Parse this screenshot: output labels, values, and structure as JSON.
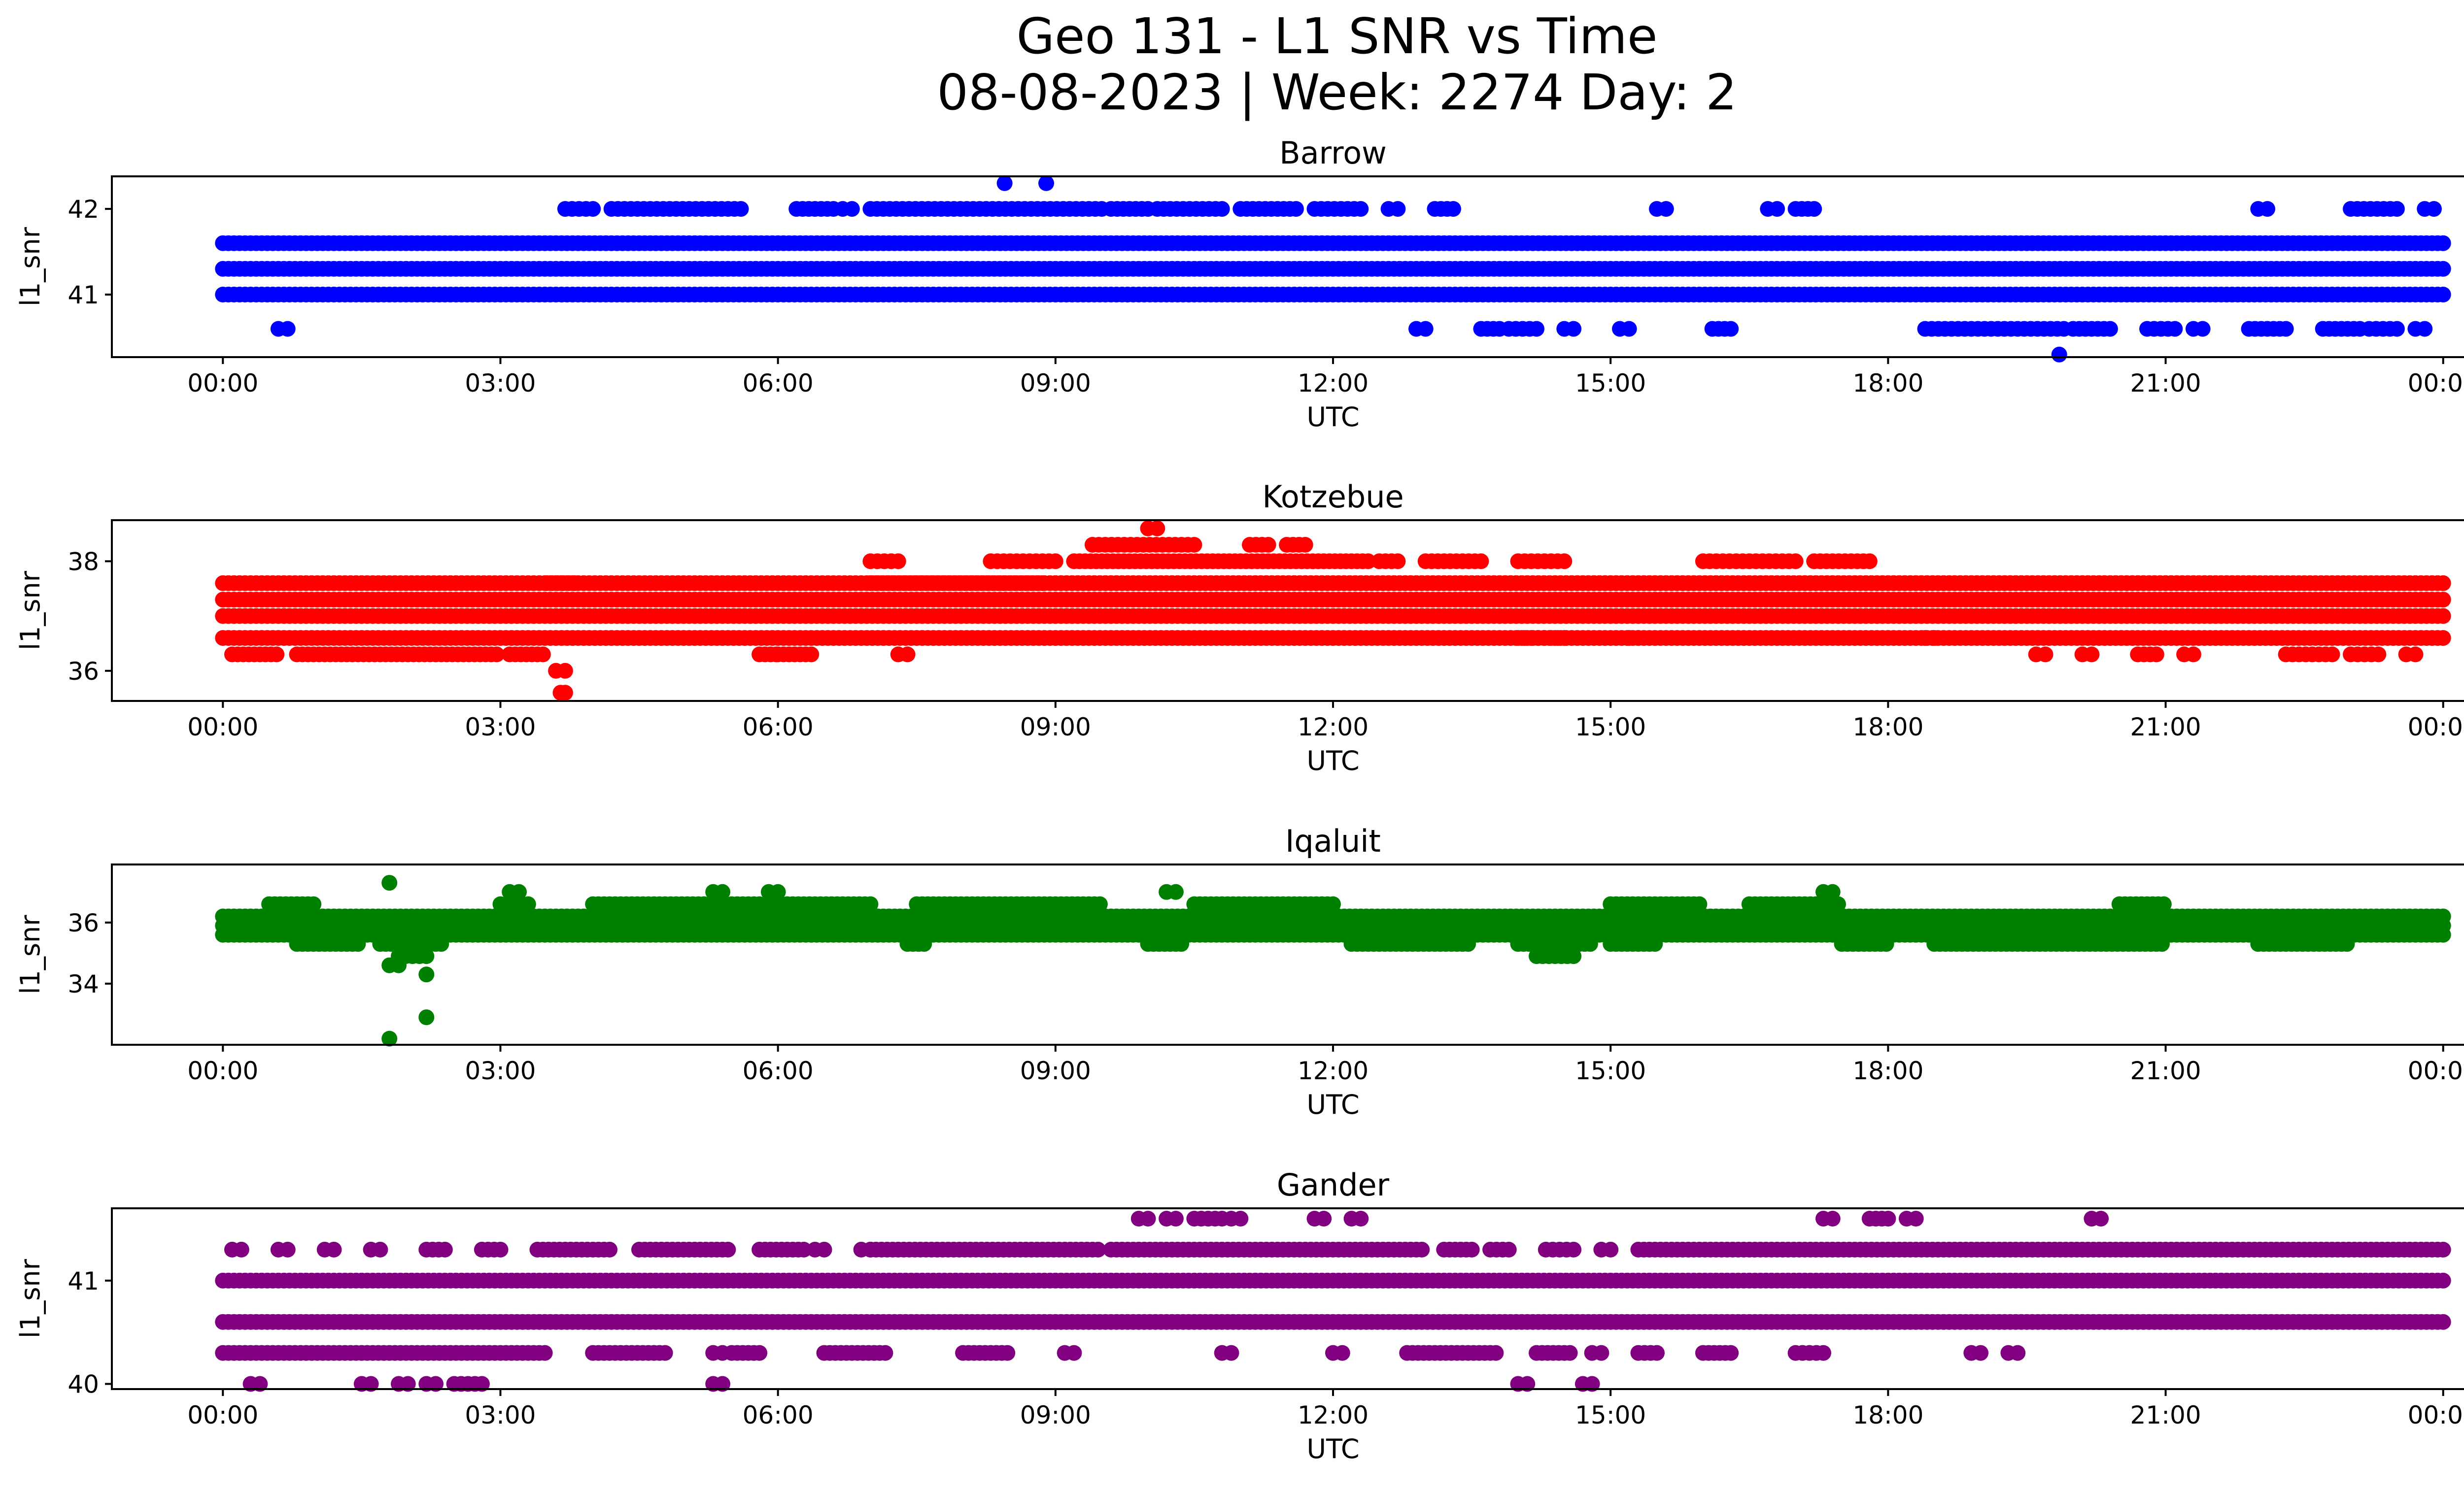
{
  "figure": {
    "title_line1": "Geo 131 - L1 SNR vs Time",
    "title_line2": "08-08-2023 | Week: 2274 Day: 2"
  },
  "chart_data": [
    {
      "type": "scatter",
      "title": "Barrow",
      "xlabel": "UTC",
      "ylabel": "l1_snr",
      "color": "#0000ff",
      "x_ticks": [
        "00:00",
        "03:00",
        "06:00",
        "09:00",
        "12:00",
        "15:00",
        "18:00",
        "21:00",
        "00:00"
      ],
      "xlim_hours": [
        -1.2,
        25.2
      ],
      "ylim": [
        40.27,
        42.38
      ],
      "y_ticks": [
        41,
        42
      ],
      "x_hours_range": [
        0,
        24
      ],
      "snr_levels": [
        41.0,
        41.3,
        41.6
      ],
      "sparse_levels": [
        {
          "value": 42.0,
          "ranges": [
            [
              3.7,
              4.0
            ],
            [
              4.2,
              5.6
            ],
            [
              6.2,
              6.6
            ],
            [
              6.7,
              6.8
            ],
            [
              7.0,
              9.5
            ],
            [
              9.6,
              10.0
            ],
            [
              10.1,
              10.8
            ],
            [
              11.0,
              11.6
            ],
            [
              11.8,
              12.3
            ],
            [
              12.6,
              12.7
            ],
            [
              13.1,
              13.3
            ],
            [
              15.5,
              15.6
            ],
            [
              16.7,
              16.8
            ],
            [
              17.0,
              17.2
            ],
            [
              22.0,
              22.1
            ],
            [
              23.0,
              23.5
            ],
            [
              23.8,
              23.9
            ]
          ]
        },
        {
          "value": 40.6,
          "ranges": [
            [
              0.6,
              0.7
            ],
            [
              12.9,
              13.0
            ],
            [
              13.6,
              13.8
            ],
            [
              13.9,
              14.2
            ],
            [
              14.5,
              14.6
            ],
            [
              15.1,
              15.2
            ],
            [
              16.1,
              16.3
            ],
            [
              18.4,
              19.9
            ],
            [
              20.0,
              20.4
            ],
            [
              20.8,
              21.1
            ],
            [
              21.3,
              21.4
            ],
            [
              21.9,
              22.3
            ],
            [
              22.7,
              23.1
            ],
            [
              23.2,
              23.5
            ],
            [
              23.7,
              23.8
            ]
          ]
        }
      ],
      "points": [
        {
          "x": 8.45,
          "y": 42.3
        },
        {
          "x": 8.9,
          "y": 42.3
        },
        {
          "x": 19.85,
          "y": 40.3
        }
      ]
    },
    {
      "type": "scatter",
      "title": "Kotzebue",
      "xlabel": "UTC",
      "ylabel": "l1_snr",
      "color": "#ff0000",
      "x_ticks": [
        "00:00",
        "03:00",
        "06:00",
        "09:00",
        "12:00",
        "15:00",
        "18:00",
        "21:00",
        "00:00"
      ],
      "xlim_hours": [
        -1.2,
        25.2
      ],
      "ylim": [
        35.45,
        38.75
      ],
      "y_ticks": [
        36,
        38
      ],
      "x_hours_range": [
        0,
        24
      ],
      "snr_levels": [
        36.6,
        37.0,
        37.3,
        37.6
      ],
      "dense_segments": [
        {
          "value": 38.0,
          "ranges": [
            [
              9.2,
              12.4
            ]
          ]
        },
        {
          "value": 37.6,
          "ranges": [
            [
              3.5,
              3.8
            ],
            [
              7.0,
              8.9
            ],
            [
              9.0,
              22.0
            ]
          ]
        },
        {
          "value": 36.3,
          "ranges": [
            [
              0.1,
              0.6
            ],
            [
              0.8,
              3.0
            ],
            [
              3.1,
              3.5
            ],
            [
              5.8,
              6.0
            ],
            [
              6.0,
              6.4
            ]
          ]
        }
      ],
      "sparse_levels": [
        {
          "value": 38.0,
          "ranges": [
            [
              7.0,
              7.3
            ],
            [
              8.3,
              9.0
            ],
            [
              12.5,
              12.7
            ],
            [
              13.0,
              13.6
            ],
            [
              14.0,
              14.5
            ],
            [
              16.0,
              17.0
            ],
            [
              17.2,
              17.8
            ]
          ]
        },
        {
          "value": 38.3,
          "ranges": [
            [
              9.4,
              10.5
            ],
            [
              11.1,
              11.3
            ],
            [
              11.5,
              11.7
            ]
          ]
        },
        {
          "value": 36.3,
          "ranges": [
            [
              7.3,
              7.4
            ],
            [
              19.6,
              19.7
            ],
            [
              20.1,
              20.2
            ],
            [
              20.7,
              20.9
            ],
            [
              21.2,
              21.3
            ],
            [
              22.3,
              22.8
            ],
            [
              23.0,
              23.3
            ],
            [
              23.6,
              23.7
            ]
          ]
        },
        {
          "value": 36.6,
          "ranges": [
            [
              14.0,
              14.5
            ],
            [
              15.2,
              15.3
            ],
            [
              18.4,
              18.5
            ]
          ]
        },
        {
          "value": 38.6,
          "ranges": [
            [
              10.0,
              10.1
            ]
          ]
        },
        {
          "value": 36.0,
          "ranges": [
            [
              3.6,
              3.7
            ]
          ]
        },
        {
          "value": 35.6,
          "ranges": [
            [
              3.65,
              3.7
            ]
          ]
        }
      ],
      "points": []
    },
    {
      "type": "scatter",
      "title": "Iqaluit",
      "xlabel": "UTC",
      "ylabel": "l1_snr",
      "color": "#008000",
      "x_ticks": [
        "00:00",
        "03:00",
        "06:00",
        "09:00",
        "12:00",
        "15:00",
        "18:00",
        "21:00",
        "00:00"
      ],
      "xlim_hours": [
        -1.2,
        25.2
      ],
      "ylim": [
        32.0,
        37.9
      ],
      "y_ticks": [
        34,
        36
      ],
      "x_hours_range": [
        0,
        24
      ],
      "snr_levels": [
        35.6,
        35.9,
        36.2
      ],
      "dense_segments": [
        {
          "value": 36.6,
          "ranges": [
            [
              0.5,
              1.0
            ],
            [
              3.0,
              3.3
            ],
            [
              4.0,
              7.0
            ],
            [
              7.5,
              9.5
            ],
            [
              10.5,
              12.0
            ],
            [
              15.0,
              16.0
            ],
            [
              16.5,
              17.5
            ],
            [
              20.5,
              21.0
            ]
          ]
        },
        {
          "value": 35.3,
          "ranges": [
            [
              0.8,
              1.5
            ],
            [
              1.7,
              2.4
            ],
            [
              7.4,
              7.6
            ],
            [
              10.0,
              10.4
            ],
            [
              12.2,
              13.5
            ],
            [
              14.0,
              14.8
            ],
            [
              15.0,
              15.5
            ],
            [
              17.5,
              18.0
            ],
            [
              18.5,
              21.0
            ],
            [
              22.0,
              23.0
            ]
          ]
        }
      ],
      "sparse_levels": [
        {
          "value": 37.0,
          "ranges": [
            [
              3.1,
              3.2
            ],
            [
              5.3,
              5.4
            ],
            [
              5.9,
              6.0
            ],
            [
              10.2,
              10.3
            ],
            [
              17.3,
              17.4
            ]
          ]
        },
        {
          "value": 34.9,
          "ranges": [
            [
              1.9,
              2.2
            ],
            [
              14.2,
              14.6
            ]
          ]
        }
      ],
      "points": [
        {
          "x": 1.8,
          "y": 37.3
        },
        {
          "x": 1.8,
          "y": 34.6
        },
        {
          "x": 1.9,
          "y": 34.6
        },
        {
          "x": 2.2,
          "y": 34.3
        },
        {
          "x": 2.2,
          "y": 32.9
        },
        {
          "x": 1.8,
          "y": 32.2
        }
      ]
    },
    {
      "type": "scatter",
      "title": "Gander",
      "xlabel": "UTC",
      "ylabel": "l1_snr",
      "color": "#800080",
      "x_ticks": [
        "00:00",
        "03:00",
        "06:00",
        "09:00",
        "12:00",
        "15:00",
        "18:00",
        "21:00",
        "00:00"
      ],
      "xlim_hours": [
        -1.2,
        25.2
      ],
      "ylim": [
        39.95,
        41.7
      ],
      "y_ticks": [
        40,
        41
      ],
      "x_hours_range": [
        0,
        24
      ],
      "snr_levels": [
        41.0,
        40.6
      ],
      "dense_segments": [
        {
          "value": 41.3,
          "ranges": [
            [
              3.4,
              4.2
            ],
            [
              4.5,
              5.5
            ],
            [
              5.8,
              6.3
            ],
            [
              7.0,
              9.5
            ],
            [
              9.6,
              13.0
            ],
            [
              13.2,
              13.5
            ],
            [
              15.3,
              24.0
            ]
          ]
        },
        {
          "value": 40.3,
          "ranges": [
            [
              0.0,
              3.5
            ],
            [
              4.0,
              4.8
            ],
            [
              5.5,
              5.8
            ],
            [
              6.5,
              7.2
            ],
            [
              8.0,
              8.5
            ],
            [
              12.8,
              13.8
            ],
            [
              14.2,
              14.6
            ],
            [
              16.0,
              16.3
            ]
          ]
        }
      ],
      "sparse_levels": [
        {
          "value": 41.3,
          "ranges": [
            [
              0.1,
              0.2
            ],
            [
              0.6,
              0.7
            ],
            [
              1.1,
              1.2
            ],
            [
              1.6,
              1.7
            ],
            [
              2.2,
              2.4
            ],
            [
              2.8,
              3.0
            ],
            [
              6.4,
              6.5
            ],
            [
              6.9,
              7.0
            ],
            [
              13.7,
              13.9
            ],
            [
              14.3,
              14.6
            ],
            [
              14.9,
              15.0
            ]
          ]
        },
        {
          "value": 40.3,
          "ranges": [
            [
              5.3,
              5.4
            ],
            [
              9.1,
              9.2
            ],
            [
              10.8,
              10.9
            ],
            [
              12.0,
              12.1
            ],
            [
              14.8,
              14.9
            ],
            [
              15.3,
              15.5
            ],
            [
              17.0,
              17.3
            ],
            [
              18.9,
              19.0
            ],
            [
              19.3,
              19.4
            ]
          ]
        },
        {
          "value": 41.6,
          "ranges": [
            [
              9.9,
              10.0
            ],
            [
              10.2,
              10.3
            ],
            [
              10.5,
              10.8
            ],
            [
              10.9,
              11.0
            ],
            [
              11.8,
              11.9
            ],
            [
              12.2,
              12.3
            ],
            [
              17.3,
              17.4
            ],
            [
              17.8,
              18.0
            ],
            [
              18.2,
              18.3
            ],
            [
              20.2,
              20.3
            ]
          ]
        },
        {
          "value": 40.0,
          "ranges": [
            [
              0.3,
              0.4
            ],
            [
              1.5,
              1.6
            ],
            [
              1.9,
              2.0
            ],
            [
              2.2,
              2.3
            ],
            [
              2.5,
              2.8
            ],
            [
              5.3,
              5.4
            ],
            [
              14.0,
              14.1
            ],
            [
              14.7,
              14.8
            ]
          ]
        }
      ],
      "points": []
    }
  ]
}
